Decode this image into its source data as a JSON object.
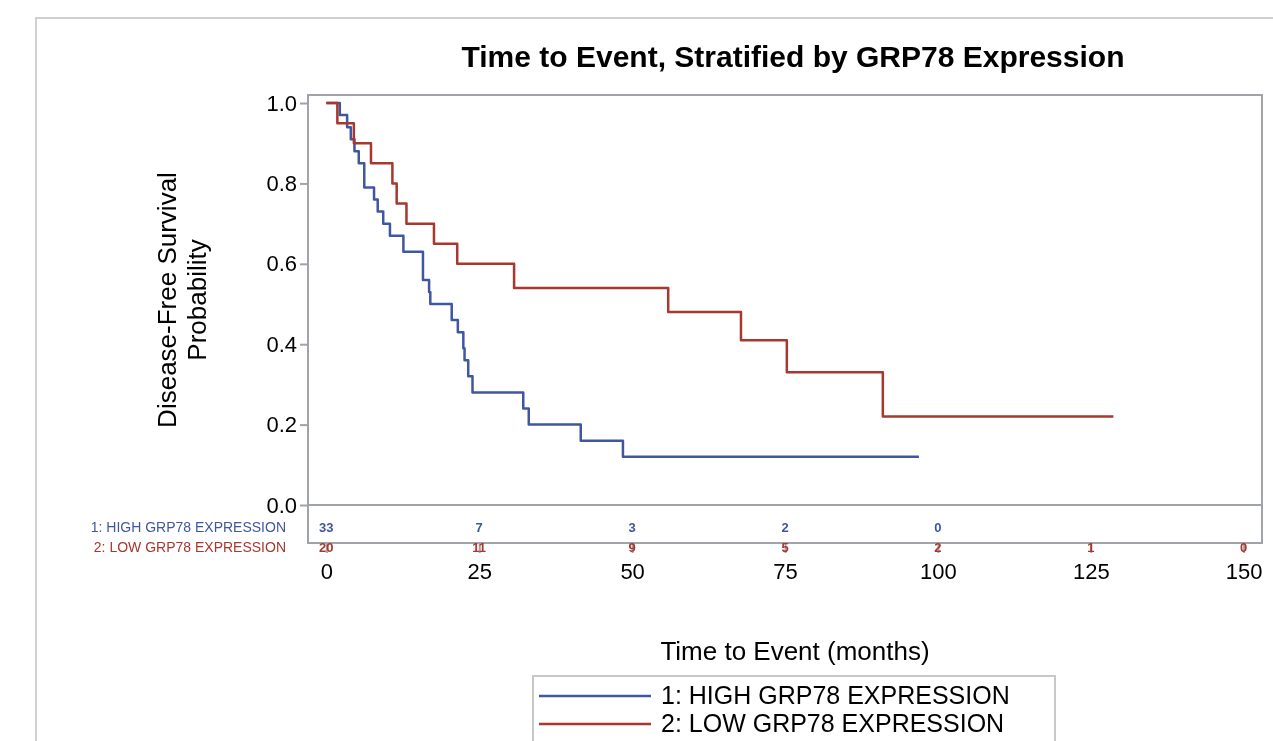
{
  "chart_data": {
    "type": "step",
    "title": "Time to Event, Stratified by GRP78 Expression",
    "xlabel": "Time to Event (months)",
    "ylabel": "Disease-Free Survival Probability",
    "xlim": [
      -3,
      153
    ],
    "xticks": [
      0,
      25,
      50,
      75,
      100,
      125,
      150
    ],
    "ylim": [
      0,
      1.02
    ],
    "yticks": [
      {
        "value": 0,
        "label": "0.0"
      },
      {
        "value": 0.2,
        "label": "0.2"
      },
      {
        "value": 0.4,
        "label": "0.4"
      },
      {
        "value": 0.6,
        "label": "0.6"
      },
      {
        "value": 0.8,
        "label": "0.8"
      },
      {
        "value": 1,
        "label": "1.0"
      }
    ],
    "grid": false,
    "legend": "bottom",
    "line_style": "solid",
    "marker": "none",
    "series": [
      {
        "name": "1: HIGH GRP78 EXPRESSION",
        "color": "#3f57a0",
        "x": [
          0,
          2.2,
          3.4,
          4.0,
          4.6,
          5.3,
          6.2,
          7.8,
          8.4,
          9.3,
          10.4,
          12.6,
          15.8,
          16.8,
          17.0,
          20.5,
          21.5,
          22.4,
          22.6,
          23.2,
          23.9,
          32.2,
          33.1,
          41.6,
          48.5,
          96.9
        ],
        "values": [
          1,
          0.97,
          0.94,
          0.91,
          0.88,
          0.85,
          0.79,
          0.76,
          0.73,
          0.7,
          0.67,
          0.63,
          0.56,
          0.53,
          0.5,
          0.46,
          0.43,
          0.39,
          0.36,
          0.32,
          0.28,
          0.24,
          0.2,
          0.16,
          0.12,
          0.12
        ]
      },
      {
        "name": "2: LOW GRP78 EXPRESSION",
        "color": "#a8372e",
        "x": [
          0,
          1.8,
          4.5,
          7.3,
          10.8,
          11.5,
          13.1,
          17.6,
          21.4,
          30.7,
          55.9,
          67.8,
          75.3,
          91.0,
          128.7
        ],
        "values": [
          1,
          0.95,
          0.9,
          0.85,
          0.8,
          0.75,
          0.7,
          0.65,
          0.6,
          0.54,
          0.48,
          0.41,
          0.33,
          0.22,
          0.22
        ]
      }
    ],
    "annotations": [
      "1: HIGH GRP78 EXPRESSION",
      "33 7 3 2 0",
      "2: LOW GRP78 EXPRESSION",
      "20 11 9 5 2 1 0"
    ]
  }
}
